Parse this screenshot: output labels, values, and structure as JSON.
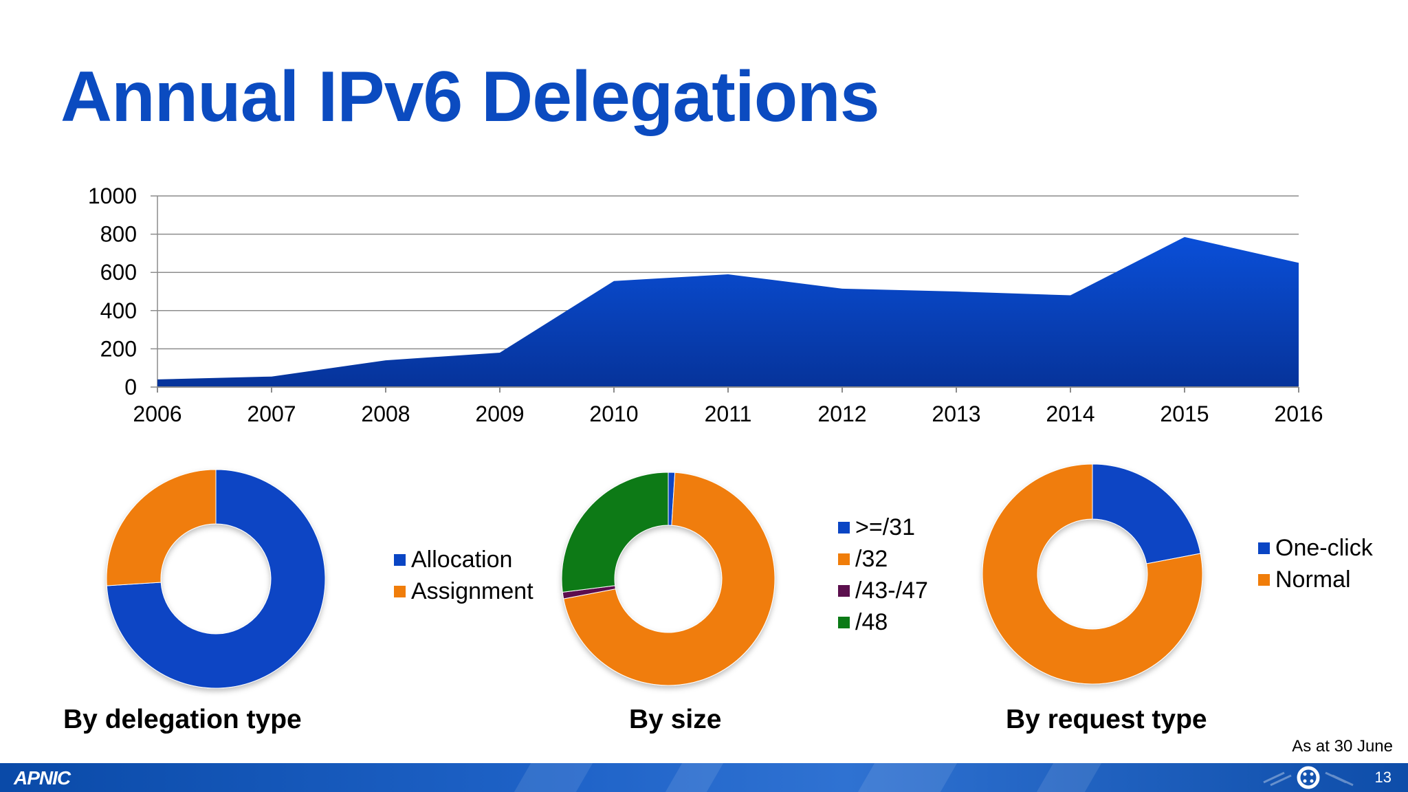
{
  "title": "Annual IPv6 Delegations",
  "chart_data": [
    {
      "type": "area",
      "title": "",
      "xlabel": "",
      "ylabel": "",
      "x": [
        "2006",
        "2007",
        "2008",
        "2009",
        "2010",
        "2011",
        "2012",
        "2013",
        "2014",
        "2015",
        "2016"
      ],
      "series": [
        {
          "values": [
            40,
            55,
            140,
            180,
            555,
            590,
            515,
            500,
            480,
            785,
            650
          ],
          "color": "#0a45c4"
        }
      ],
      "ylim": [
        0,
        1000
      ],
      "yticks": [
        "0",
        "200",
        "400",
        "600",
        "800",
        "1000"
      ],
      "grid": true
    },
    {
      "type": "pie",
      "title": "By delegation type",
      "labels": [
        "Allocation",
        "Assignment"
      ],
      "values": [
        74,
        26
      ],
      "colors": [
        "#0a45c4",
        "#f07d0a"
      ],
      "legend": "right"
    },
    {
      "type": "pie",
      "title": "By size",
      "labels": [
        ">=/31",
        "/32",
        "/43-/47",
        "/48"
      ],
      "values": [
        1,
        71,
        1,
        27
      ],
      "colors": [
        "#0a45c4",
        "#f07d0a",
        "#5b0f4d",
        "#0b7a16"
      ],
      "legend": "right"
    },
    {
      "type": "pie",
      "title": "By request type",
      "labels": [
        "One-click",
        "Normal"
      ],
      "values": [
        22,
        78
      ],
      "colors": [
        "#0a45c4",
        "#f07d0a"
      ],
      "legend": "right"
    }
  ],
  "footer": {
    "note": "As at 30 June",
    "logo": "APNIC",
    "page": "13"
  }
}
